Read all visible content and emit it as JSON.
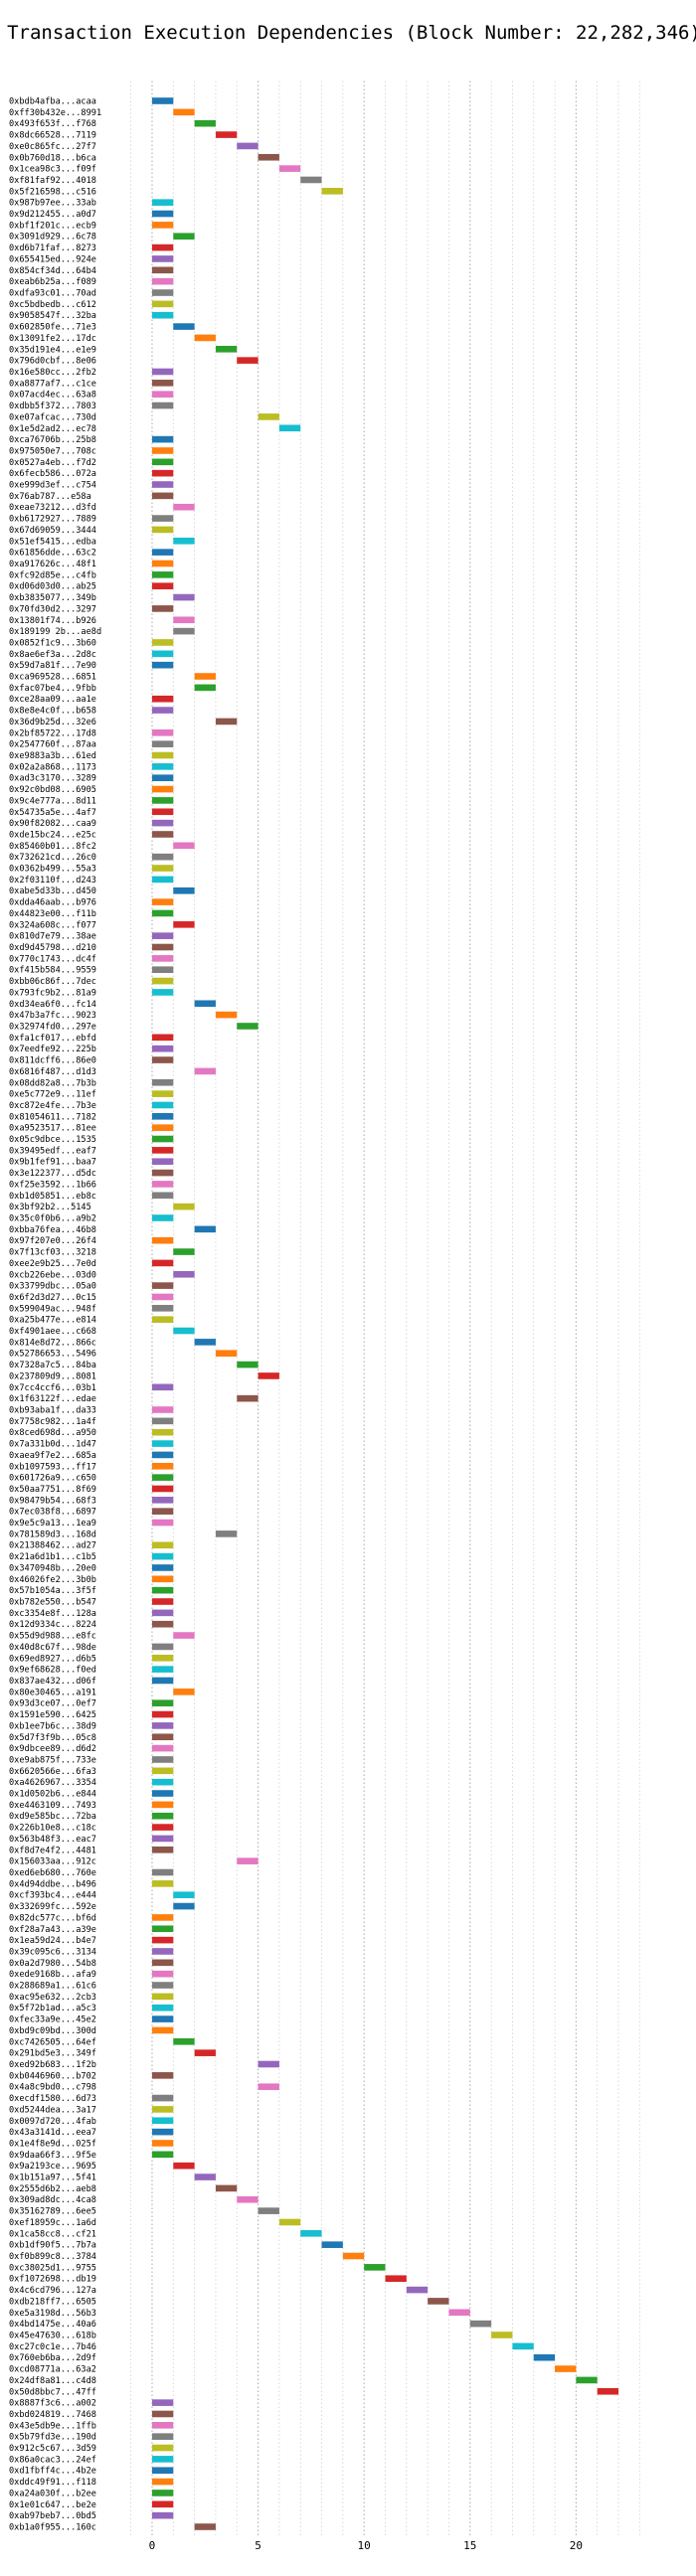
{
  "chart_data": {
    "type": "gantt",
    "title": "Transaction Execution Dependencies (Block Number: 22,282,346)",
    "xlabel": "",
    "ylabel": "",
    "xlim": [
      -1.5,
      23.5
    ],
    "x_ticks": [
      0,
      5,
      10,
      15,
      20
    ],
    "x_minor_step": 1,
    "grid": true,
    "grid_style": "dotted",
    "bar_duration": 1,
    "palette": [
      "#1f77b4",
      "#ff7f0e",
      "#2ca02c",
      "#d62728",
      "#9467bd",
      "#8c564b",
      "#e377c2",
      "#7f7f7f",
      "#bcbd22",
      "#17becf"
    ],
    "transactions": [
      {
        "label": "0xbdb4afba...acaa",
        "start": 0
      },
      {
        "label": "0xff30b432e...8991",
        "start": 1
      },
      {
        "label": "0x493f653f...f768",
        "start": 2
      },
      {
        "label": "0x8dc66528...7119",
        "start": 3
      },
      {
        "label": "0xe0c865fc...27f7",
        "start": 4
      },
      {
        "label": "0x0b760d18...b6ca",
        "start": 5
      },
      {
        "label": "0x1cea98c3...f09f",
        "start": 6
      },
      {
        "label": "0xf81faf92...4018",
        "start": 7
      },
      {
        "label": "0x5f216598...c516",
        "start": 8
      },
      {
        "label": "0x987b97ee...33ab",
        "start": 0
      },
      {
        "label": "0x9d212455...a0d7",
        "start": 0
      },
      {
        "label": "0xbf1f201c...ecb9",
        "start": 0
      },
      {
        "label": "0x3091d929...6c78",
        "start": 1
      },
      {
        "label": "0xd6b71faf...8273",
        "start": 0
      },
      {
        "label": "0x655415ed...924e",
        "start": 0
      },
      {
        "label": "0x854cf34d...64b4",
        "start": 0
      },
      {
        "label": "0xeab6b25a...f089",
        "start": 0
      },
      {
        "label": "0xdfa93c01...70ad",
        "start": 0
      },
      {
        "label": "0xc5bdbedb...c612",
        "start": 0
      },
      {
        "label": "0x9058547f...32ba",
        "start": 0
      },
      {
        "label": "0x602850fe...71e3",
        "start": 1
      },
      {
        "label": "0x13091fe2...17dc",
        "start": 2
      },
      {
        "label": "0x35d191e4...e1e9",
        "start": 3
      },
      {
        "label": "0x796d0cbf...8e06",
        "start": 4
      },
      {
        "label": "0x16e580cc...2fb2",
        "start": 0
      },
      {
        "label": "0xa8877af7...c1ce",
        "start": 0
      },
      {
        "label": "0x07acd4ec...63a8",
        "start": 0
      },
      {
        "label": "0xdbb5f372...7803",
        "start": 0
      },
      {
        "label": "0xe07afcac...730d",
        "start": 5
      },
      {
        "label": "0x1e5d2ad2...ec78",
        "start": 6
      },
      {
        "label": "0xca76706b...25b8",
        "start": 0
      },
      {
        "label": "0x975050e7...708c",
        "start": 0
      },
      {
        "label": "0x0527a4eb...f7d2",
        "start": 0
      },
      {
        "label": "0x6fecb586...072a",
        "start": 0
      },
      {
        "label": "0xe999d3ef...c754",
        "start": 0
      },
      {
        "label": "0x76ab787...e58a",
        "start": 0
      },
      {
        "label": "0xeae73212...d3fd",
        "start": 1
      },
      {
        "label": "0xb6172927...7889",
        "start": 0
      },
      {
        "label": "0x67d69059...3444",
        "start": 0
      },
      {
        "label": "0x51ef5415...edba",
        "start": 1
      },
      {
        "label": "0x61856dde...63c2",
        "start": 0
      },
      {
        "label": "0xa917626c...48f1",
        "start": 0
      },
      {
        "label": "0xfc92d85e...c4fb",
        "start": 0
      },
      {
        "label": "0xd06d03d0...ab25",
        "start": 0
      },
      {
        "label": "0xb3835077...349b",
        "start": 1
      },
      {
        "label": "0x70fd30d2...3297",
        "start": 0
      },
      {
        "label": "0x13801f74...b926",
        "start": 1
      },
      {
        "label": "0x189199 2b...ae8d",
        "start": 1
      },
      {
        "label": "0x0852f1c9...3b60",
        "start": 0
      },
      {
        "label": "0x8ae6ef3a...2d8c",
        "start": 0
      },
      {
        "label": "0x59d7a81f...7e90",
        "start": 0
      },
      {
        "label": "0xca969528...6851",
        "start": 2
      },
      {
        "label": "0xfac07be4...9fbb",
        "start": 2
      },
      {
        "label": "0xce28aa09...aa1e",
        "start": 0
      },
      {
        "label": "0x8e8e4c0f...b658",
        "start": 0
      },
      {
        "label": "0x36d9b25d...32e6",
        "start": 3
      },
      {
        "label": "0x2bf85722...17d8",
        "start": 0
      },
      {
        "label": "0x2547760f...87aa",
        "start": 0
      },
      {
        "label": "0xe9883a3b...61ed",
        "start": 0
      },
      {
        "label": "0x02a2a868...1173",
        "start": 0
      },
      {
        "label": "0xad3c3170...3289",
        "start": 0
      },
      {
        "label": "0x92c0bd08...6905",
        "start": 0
      },
      {
        "label": "0x9c4e777a...8d11",
        "start": 0
      },
      {
        "label": "0x54735a5e...4af7",
        "start": 0
      },
      {
        "label": "0x90f82082...caa9",
        "start": 0
      },
      {
        "label": "0xde15bc24...e25c",
        "start": 0
      },
      {
        "label": "0x85460b01...8fc2",
        "start": 1
      },
      {
        "label": "0x732621cd...26c0",
        "start": 0
      },
      {
        "label": "0x0362b499...55a3",
        "start": 0
      },
      {
        "label": "0x2f03110f...d243",
        "start": 0
      },
      {
        "label": "0xabe5d33b...d450",
        "start": 1
      },
      {
        "label": "0xdda46aab...b976",
        "start": 0
      },
      {
        "label": "0x44823e00...f11b",
        "start": 0
      },
      {
        "label": "0x324a608c...f077",
        "start": 1
      },
      {
        "label": "0x810d7e79...38ae",
        "start": 0
      },
      {
        "label": "0xd9d45798...d210",
        "start": 0
      },
      {
        "label": "0x770c1743...dc4f",
        "start": 0
      },
      {
        "label": "0xf415b584...9559",
        "start": 0
      },
      {
        "label": "0xbb06c86f...7dec",
        "start": 0
      },
      {
        "label": "0x793fc9b2...81a9",
        "start": 0
      },
      {
        "label": "0xd34ea6f0...fc14",
        "start": 2
      },
      {
        "label": "0x47b3a7fc...9023",
        "start": 3
      },
      {
        "label": "0x32974fd0...297e",
        "start": 4
      },
      {
        "label": "0xfa1cf017...ebfd",
        "start": 0
      },
      {
        "label": "0x7eedfe92...225b",
        "start": 0
      },
      {
        "label": "0x811dcff6...86e0",
        "start": 0
      },
      {
        "label": "0x6816f487...d1d3",
        "start": 2
      },
      {
        "label": "0x08dd82a8...7b3b",
        "start": 0
      },
      {
        "label": "0xe5c772e9...11ef",
        "start": 0
      },
      {
        "label": "0xc872e4fe...7b3e",
        "start": 0
      },
      {
        "label": "0x81054611...7182",
        "start": 0
      },
      {
        "label": "0xa9523517...81ee",
        "start": 0
      },
      {
        "label": "0x05c9dbce...1535",
        "start": 0
      },
      {
        "label": "0x39495edf...eaf7",
        "start": 0
      },
      {
        "label": "0x9b1fef91...baa7",
        "start": 0
      },
      {
        "label": "0x3e122377...d5dc",
        "start": 0
      },
      {
        "label": "0xf25e3592...1b66",
        "start": 0
      },
      {
        "label": "0xb1d05851...eb8c",
        "start": 0
      },
      {
        "label": "0x3bf92b2...5145",
        "start": 1
      },
      {
        "label": "0x35c0f0b6...a9b2",
        "start": 0
      },
      {
        "label": "0xbba76fea...46b8",
        "start": 2
      },
      {
        "label": "0x97f207e0...26f4",
        "start": 0
      },
      {
        "label": "0x7f13cf03...3218",
        "start": 1
      },
      {
        "label": "0xee2e9b25...7e0d",
        "start": 0
      },
      {
        "label": "0xcb226ebe...03d0",
        "start": 1
      },
      {
        "label": "0x33799dbc...05a0",
        "start": 0
      },
      {
        "label": "0x6f2d3d27...0c15",
        "start": 0
      },
      {
        "label": "0x599049ac...948f",
        "start": 0
      },
      {
        "label": "0xa25b477e...e814",
        "start": 0
      },
      {
        "label": "0xf4901aee...c668",
        "start": 1
      },
      {
        "label": "0x814e8d72...866c",
        "start": 2
      },
      {
        "label": "0x52786653...5496",
        "start": 3
      },
      {
        "label": "0x7328a7c5...84ba",
        "start": 4
      },
      {
        "label": "0x237809d9...8081",
        "start": 5
      },
      {
        "label": "0x7cc4ccf6...03b1",
        "start": 0
      },
      {
        "label": "0x1f63122f...edae",
        "start": 4
      },
      {
        "label": "0xb93aba1f...da33",
        "start": 0
      },
      {
        "label": "0x7758c982...1a4f",
        "start": 0
      },
      {
        "label": "0x8ced698d...a950",
        "start": 0
      },
      {
        "label": "0x7a331b0d...1d47",
        "start": 0
      },
      {
        "label": "0xaea9f7e2...685a",
        "start": 0
      },
      {
        "label": "0xb1097593...ff17",
        "start": 0
      },
      {
        "label": "0x601726a9...c650",
        "start": 0
      },
      {
        "label": "0x50aa7751...8f69",
        "start": 0
      },
      {
        "label": "0x98479b54...68f3",
        "start": 0
      },
      {
        "label": "0x7ec038f8...6897",
        "start": 0
      },
      {
        "label": "0x9e5c9a13...1ea9",
        "start": 0
      },
      {
        "label": "0x781589d3...168d",
        "start": 3
      },
      {
        "label": "0x21388462...ad27",
        "start": 0
      },
      {
        "label": "0x21a6d1b1...c1b5",
        "start": 0
      },
      {
        "label": "0x3470948b...20e0",
        "start": 0
      },
      {
        "label": "0x46026fe2...3b0b",
        "start": 0
      },
      {
        "label": "0x57b1054a...3f5f",
        "start": 0
      },
      {
        "label": "0xb782e550...b547",
        "start": 0
      },
      {
        "label": "0xc3354e8f...128a",
        "start": 0
      },
      {
        "label": "0x12d9334c...8224",
        "start": 0
      },
      {
        "label": "0x55d9d988...e8fc",
        "start": 1
      },
      {
        "label": "0x40d8c67f...98de",
        "start": 0
      },
      {
        "label": "0x69ed8927...d6b5",
        "start": 0
      },
      {
        "label": "0x9ef68628...f0ed",
        "start": 0
      },
      {
        "label": "0x837ae432...d06f",
        "start": 0
      },
      {
        "label": "0x80e30465...a191",
        "start": 1
      },
      {
        "label": "0x93d3ce07...0ef7",
        "start": 0
      },
      {
        "label": "0x1591e590...6425",
        "start": 0
      },
      {
        "label": "0xb1ee7b6c...38d9",
        "start": 0
      },
      {
        "label": "0x5d7f3f9b...05c8",
        "start": 0
      },
      {
        "label": "0x9dbcee89...d6d2",
        "start": 0
      },
      {
        "label": "0xe9ab875f...733e",
        "start": 0
      },
      {
        "label": "0x6620566e...6fa3",
        "start": 0
      },
      {
        "label": "0xa4626967...3354",
        "start": 0
      },
      {
        "label": "0x1d0502b6...e844",
        "start": 0
      },
      {
        "label": "0xe4463109...7493",
        "start": 0
      },
      {
        "label": "0xd9e585bc...72ba",
        "start": 0
      },
      {
        "label": "0x226b10e8...c18c",
        "start": 0
      },
      {
        "label": "0x563b48f3...eac7",
        "start": 0
      },
      {
        "label": "0xf8d7e4f2...4481",
        "start": 0
      },
      {
        "label": "0x156033aa...912c",
        "start": 4
      },
      {
        "label": "0xed6eb680...760e",
        "start": 0
      },
      {
        "label": "0x4d94ddbe...b496",
        "start": 0
      },
      {
        "label": "0xcf393bc4...e444",
        "start": 1
      },
      {
        "label": "0x332699fc...592e",
        "start": 1
      },
      {
        "label": "0x82dc577c...bf6d",
        "start": 0
      },
      {
        "label": "0xf28a7a43...a39e",
        "start": 0
      },
      {
        "label": "0x1ea59d24...b4e7",
        "start": 0
      },
      {
        "label": "0x39c095c6...3134",
        "start": 0
      },
      {
        "label": "0x0a2d7980...54b8",
        "start": 0
      },
      {
        "label": "0xede9168b...afa9",
        "start": 0
      },
      {
        "label": "0x288689a1...61c6",
        "start": 0
      },
      {
        "label": "0xac95e632...2cb3",
        "start": 0
      },
      {
        "label": "0x5f72b1ad...a5c3",
        "start": 0
      },
      {
        "label": "0xfec33a9e...45e2",
        "start": 0
      },
      {
        "label": "0xbd9c09bd...300d",
        "start": 0
      },
      {
        "label": "0xc7426505...64ef",
        "start": 1
      },
      {
        "label": "0x291bd5e3...349f",
        "start": 2
      },
      {
        "label": "0xed92b683...1f2b",
        "start": 5
      },
      {
        "label": "0xb0446960...b702",
        "start": 0
      },
      {
        "label": "0x4a8c9bd0...c798",
        "start": 5
      },
      {
        "label": "0xecdf1580...6d73",
        "start": 0
      },
      {
        "label": "0xd5244dea...3a17",
        "start": 0
      },
      {
        "label": "0x0097d720...4fab",
        "start": 0
      },
      {
        "label": "0x43a3141d...eea7",
        "start": 0
      },
      {
        "label": "0x1e4f8e9d...025f",
        "start": 0
      },
      {
        "label": "0x9daa66f3...9f5e",
        "start": 0
      },
      {
        "label": "0x9a2193ce...9695",
        "start": 1
      },
      {
        "label": "0x1b151a97...5f41",
        "start": 2
      },
      {
        "label": "0x2555d6b2...aeb8",
        "start": 3
      },
      {
        "label": "0x309ad8dc...4ca8",
        "start": 4
      },
      {
        "label": "0x35162789...6ee5",
        "start": 5
      },
      {
        "label": "0xef18959c...1a6d",
        "start": 6
      },
      {
        "label": "0x1ca58cc8...cf21",
        "start": 7
      },
      {
        "label": "0xb1df90f5...7b7a",
        "start": 8
      },
      {
        "label": "0xf0b899c8...3784",
        "start": 9
      },
      {
        "label": "0xc38025d1...9755",
        "start": 10
      },
      {
        "label": "0xf1072698...db19",
        "start": 11
      },
      {
        "label": "0x4c6cd796...127a",
        "start": 12
      },
      {
        "label": "0xdb218ff7...6505",
        "start": 13
      },
      {
        "label": "0xe5a3198d...56b3",
        "start": 14
      },
      {
        "label": "0x4bd1475e...40a6",
        "start": 15
      },
      {
        "label": "0x45e47630...618b",
        "start": 16
      },
      {
        "label": "0xc27c0c1e...7b46",
        "start": 17
      },
      {
        "label": "0x760eb6ba...2d9f",
        "start": 18
      },
      {
        "label": "0xcd08771a...63a2",
        "start": 19
      },
      {
        "label": "0x24df8a81...c4d8",
        "start": 20
      },
      {
        "label": "0x50d8bbc7...47ff",
        "start": 21
      },
      {
        "label": "0x8887f3c6...a002",
        "start": 0
      },
      {
        "label": "0xbd024819...7468",
        "start": 0
      },
      {
        "label": "0x43e5db9e...1ffb",
        "start": 0
      },
      {
        "label": "0x5b79fd3e...190d",
        "start": 0
      },
      {
        "label": "0x912c5c67...3d59",
        "start": 0
      },
      {
        "label": "0x86a0cac3...24ef",
        "start": 0
      },
      {
        "label": "0xd1fbff4c...4b2e",
        "start": 0
      },
      {
        "label": "0xddc49f91...f118",
        "start": 0
      },
      {
        "label": "0xa24a030f...b2ee",
        "start": 0
      },
      {
        "label": "0x1e01c647...be2e",
        "start": 0
      },
      {
        "label": "0xab97beb7...0bd5",
        "start": 0
      },
      {
        "label": "0xb1a0f955...160c",
        "start": 2
      }
    ]
  }
}
